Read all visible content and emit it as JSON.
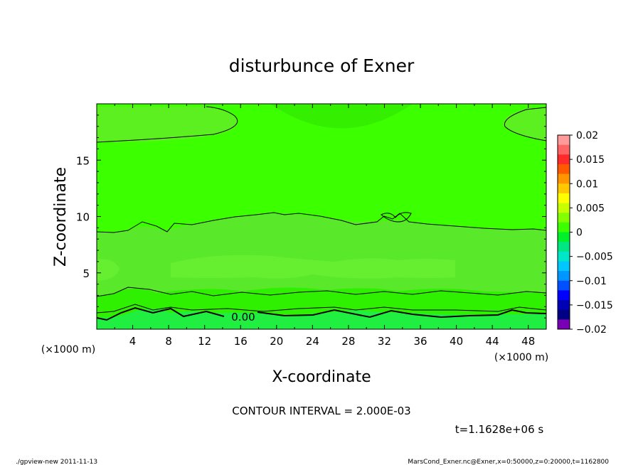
{
  "chart_data": {
    "type": "heatmap",
    "title": "disturbunce of Exner",
    "xlabel": "X-coordinate",
    "ylabel": "Z-coordinate",
    "x_unit_left": "(×1000 m)",
    "x_unit_right": "(×1000 m)",
    "xlim": [
      0,
      50
    ],
    "ylim": [
      0,
      20
    ],
    "x_ticks": [
      4,
      8,
      12,
      16,
      20,
      24,
      28,
      32,
      36,
      40,
      44,
      48
    ],
    "x_tick_labels": [
      "4",
      "8",
      "12",
      "16",
      "20",
      "24",
      "28",
      "32",
      "36",
      "40",
      "44",
      "48"
    ],
    "y_ticks": [
      5,
      10,
      15
    ],
    "y_tick_labels": [
      "5",
      "10",
      "15"
    ],
    "contour_interval_text": "CONTOUR INTERVAL = 2.000E-03",
    "time_text": "t=1.1628e+06 s",
    "contour_label": "0.00",
    "colorbar": {
      "range": [
        -0.02,
        0.02
      ],
      "ticks": [
        0.02,
        0.015,
        0.01,
        0.005,
        0,
        -0.005,
        -0.01,
        -0.015,
        -0.02
      ],
      "tick_labels": [
        "0.02",
        "0.015",
        "0.01",
        "0.005",
        "0",
        "−0.005",
        "−0.01",
        "−0.015",
        "−0.02"
      ],
      "colors_top_to_bottom": [
        "#ff9a9a",
        "#ff6464",
        "#ff2a2a",
        "#ff5a00",
        "#ff9600",
        "#ffc800",
        "#ffff00",
        "#c8ff00",
        "#82ff00",
        "#3cff00",
        "#00f02a",
        "#00e682",
        "#00e6c8",
        "#00c8ff",
        "#0096ff",
        "#0050ff",
        "#0000ff",
        "#0000b4",
        "#000082",
        "#7a00b4"
      ]
    },
    "field_colors": {
      "upper_band": "#3cff00",
      "mid_band": "#5cf020",
      "lower_band": "#2ff000",
      "near_surface": "#20ee40",
      "bright_patch": "#66ee30"
    }
  },
  "footer": {
    "left": "./gpview-new   2011-11-13",
    "right": "MarsCond_Exner.nc@Exner,x=0:50000,z=0:20000,t=1162800"
  }
}
